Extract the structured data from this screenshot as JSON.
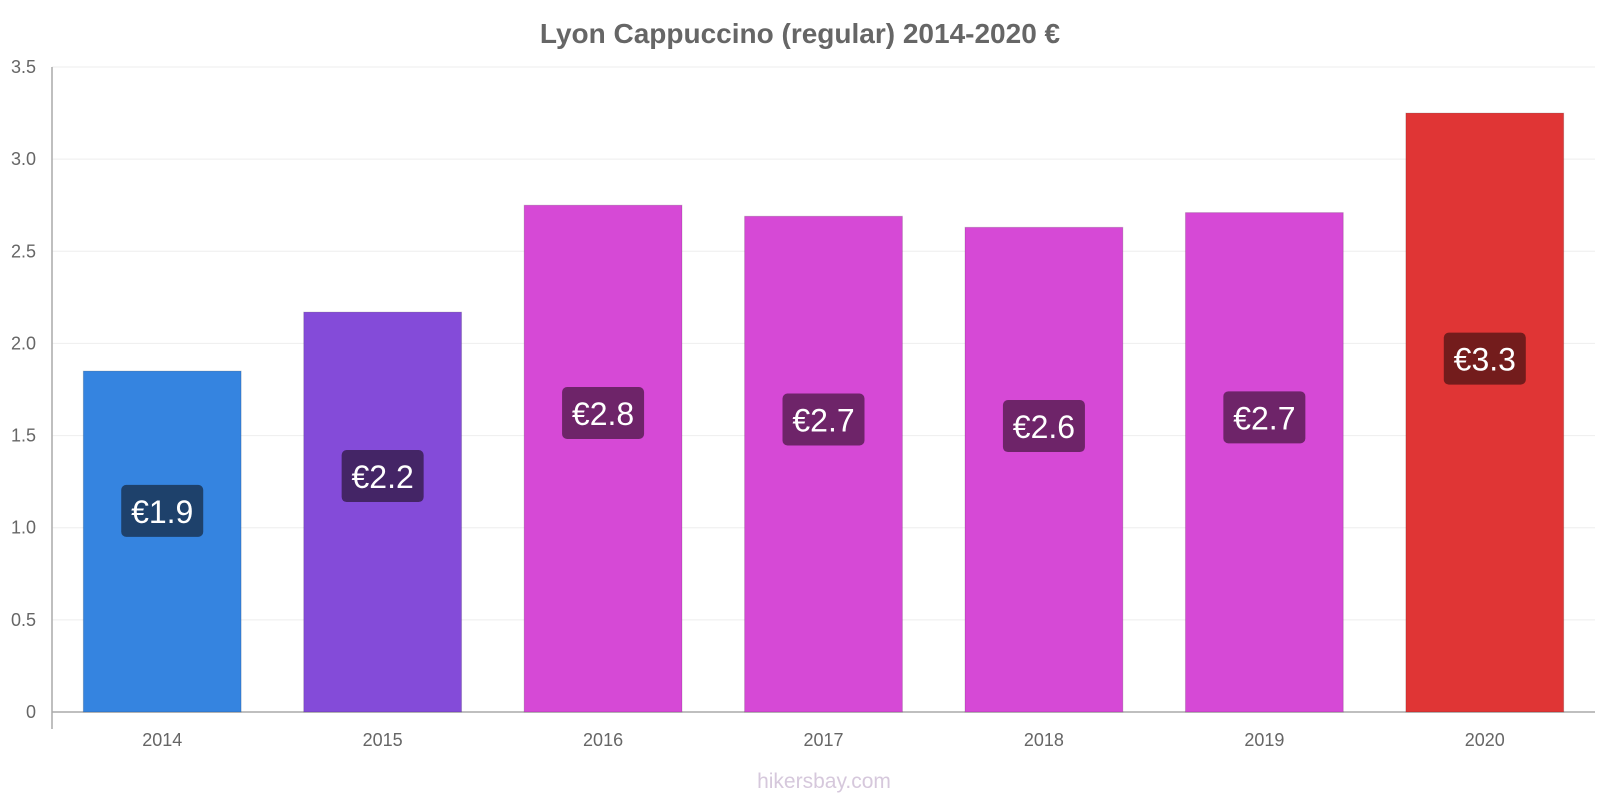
{
  "chart_data": {
    "type": "bar",
    "title": "Lyon Cappuccino (regular) 2014-2020 €",
    "xlabel": "",
    "ylabel": "",
    "categories": [
      "2014",
      "2015",
      "2016",
      "2017",
      "2018",
      "2019",
      "2020"
    ],
    "values": [
      1.85,
      2.17,
      2.75,
      2.69,
      2.63,
      2.71,
      3.25
    ],
    "value_labels": [
      "€1.9",
      "€2.2",
      "€2.8",
      "€2.7",
      "€2.6",
      "€2.7",
      "€3.3"
    ],
    "bar_colors": [
      "#3584e0",
      "#844bd9",
      "#d649d6",
      "#d649d6",
      "#d649d6",
      "#d649d6",
      "#e03535"
    ],
    "label_bg_colors": [
      "#1e416b",
      "#442566",
      "#6e2469",
      "#6e2469",
      "#6e2469",
      "#6e2469",
      "#731c1c"
    ],
    "ylim": [
      0,
      3.5
    ],
    "yticks": [
      0,
      0.5,
      1.0,
      1.5,
      2.0,
      2.5,
      3.0,
      3.5
    ],
    "ytick_labels": [
      "0",
      "0.5",
      "1.0",
      "1.5",
      "2.0",
      "2.5",
      "3.0",
      "3.5"
    ],
    "grid": true,
    "legend": "none"
  },
  "watermark": "hikersbay.com"
}
